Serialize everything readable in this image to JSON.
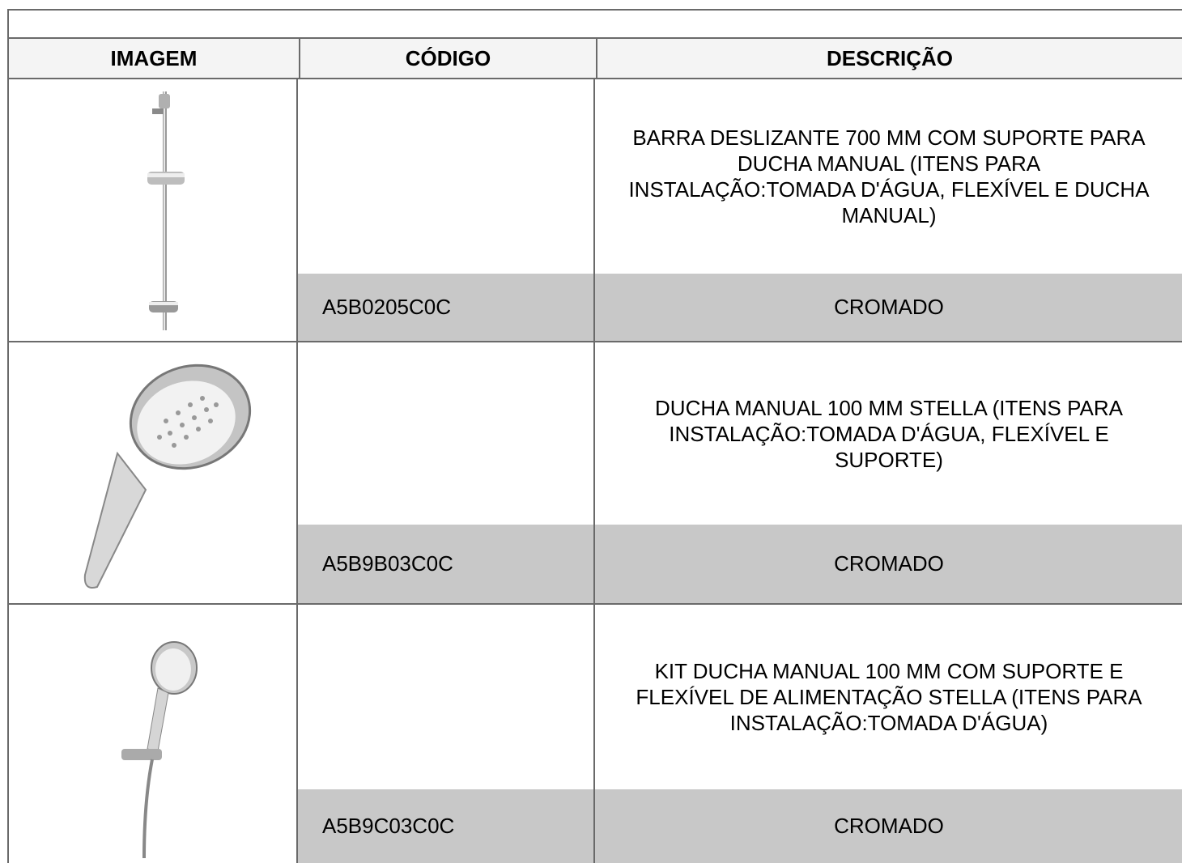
{
  "table": {
    "headers": [
      "IMAGEM",
      "CÓDIGO",
      "DESCRIÇÃO"
    ],
    "rows": [
      {
        "code": "A5B0205C0C",
        "description": "BARRA DESLIZANTE 700 MM COM SUPORTE PARA DUCHA MANUAL (ITENS PARA INSTALAÇÃO:TOMADA D'ÁGUA, FLEXÍVEL E DUCHA MANUAL)",
        "finish": "CROMADO"
      },
      {
        "code": "A5B9B03C0C",
        "description": "DUCHA MANUAL 100 MM STELLA (ITENS PARA INSTALAÇÃO:TOMADA D'ÁGUA, FLEXÍVEL E SUPORTE)",
        "finish": "CROMADO"
      },
      {
        "code": "A5B9C03C0C",
        "description": "KIT DUCHA MANUAL 100 MM COM SUPORTE E FLEXÍVEL DE ALIMENTAÇÃO STELLA (ITENS PARA INSTALAÇÃO:TOMADA D'ÁGUA)",
        "finish": "CROMADO"
      }
    ]
  }
}
